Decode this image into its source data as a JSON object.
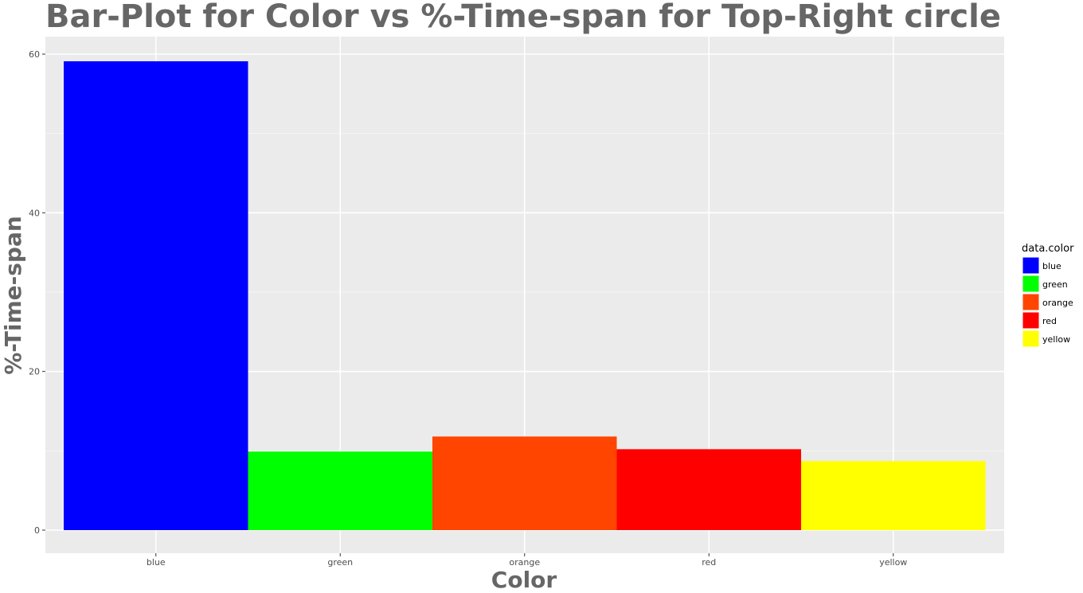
{
  "chart_data": {
    "type": "bar",
    "title": "Bar-Plot for Color vs %-Time-span for Top-Right circle",
    "xlabel": "Color",
    "ylabel": "%-Time-span",
    "categories": [
      "blue",
      "green",
      "orange",
      "red",
      "yellow"
    ],
    "values": [
      59.1,
      9.9,
      11.8,
      10.2,
      8.7
    ],
    "colors": [
      "#0000FF",
      "#00FF00",
      "#FF4500",
      "#FF0000",
      "#FFFF00"
    ],
    "ylim": [
      0,
      62
    ],
    "yticks": [
      0,
      20,
      40,
      60
    ],
    "grid": true,
    "legend": {
      "title": "data.color",
      "placement": "right",
      "entries": [
        "blue",
        "green",
        "orange",
        "red",
        "yellow"
      ]
    }
  }
}
